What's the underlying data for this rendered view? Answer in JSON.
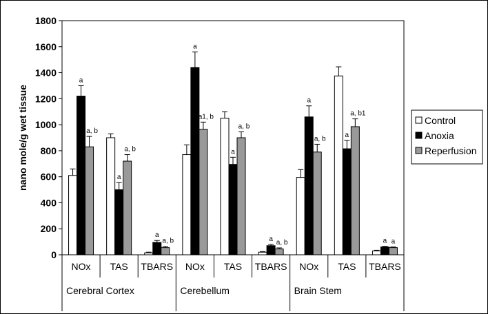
{
  "chart_data": {
    "type": "bar",
    "title": "",
    "ylabel": "nano mole/g wet tissue",
    "xlabel": "",
    "ylim": [
      0,
      1800
    ],
    "yticks": [
      0,
      200,
      400,
      600,
      800,
      1000,
      1200,
      1400,
      1600,
      1800
    ],
    "grid": false,
    "legend_position": "right",
    "regions": [
      "Cerebral Cortex",
      "Cerebellum",
      "Brain Stem"
    ],
    "categories": [
      "NOx",
      "TAS",
      "TBARS",
      "NOx",
      "TAS",
      "TBARS",
      "NOx",
      "TAS",
      "TBARS"
    ],
    "series": [
      {
        "name": "Control",
        "color": "#ffffff",
        "values": [
          610,
          900,
          15,
          770,
          1050,
          20,
          595,
          1375,
          30
        ],
        "errors": [
          50,
          30,
          5,
          75,
          50,
          5,
          60,
          70,
          5
        ],
        "labels": [
          "",
          "",
          "",
          "",
          "",
          "",
          "",
          "",
          ""
        ]
      },
      {
        "name": "Anoxia",
        "color": "#000000",
        "values": [
          1220,
          500,
          95,
          1440,
          695,
          70,
          1060,
          815,
          60
        ],
        "errors": [
          80,
          55,
          15,
          120,
          55,
          10,
          85,
          65,
          5
        ],
        "labels": [
          "a",
          "a",
          "a",
          "a",
          "a",
          "a",
          "a",
          "a",
          "a"
        ]
      },
      {
        "name": "Reperfusion",
        "color": "#999999",
        "values": [
          830,
          720,
          55,
          965,
          900,
          45,
          790,
          985,
          55
        ],
        "errors": [
          80,
          50,
          10,
          55,
          45,
          8,
          60,
          60,
          5
        ],
        "labels": [
          "a, b",
          "a, b",
          "a, b",
          "a1, b",
          "a, b",
          "a, b",
          "a, b",
          "a, b1",
          "a"
        ]
      }
    ]
  }
}
